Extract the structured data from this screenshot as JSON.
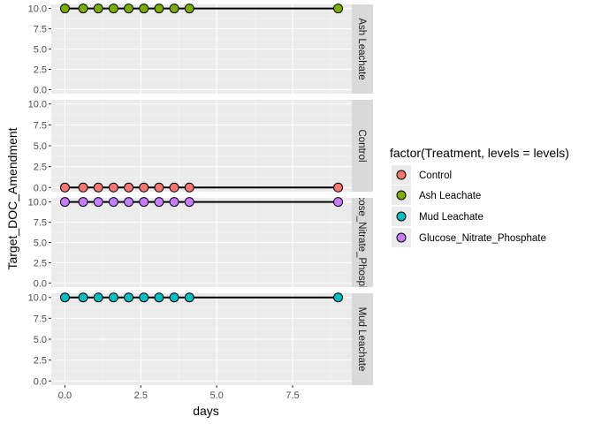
{
  "chart_data": {
    "type": "scatter",
    "xlabel": "days",
    "ylabel": "Target_DOC_Amendment",
    "xlim": [
      -0.45,
      9.45
    ],
    "ylim": [
      -0.5,
      10.5
    ],
    "x_ticks": [
      0.0,
      2.5,
      5.0,
      7.5
    ],
    "x_tick_labels": [
      "0.0",
      "2.5",
      "5.0",
      "7.5"
    ],
    "y_ticks": [
      0.0,
      2.5,
      5.0,
      7.5,
      10.0
    ],
    "y_tick_labels": [
      "0.0",
      "2.5",
      "5.0",
      "7.5",
      "10.0"
    ],
    "grid": true,
    "legend": {
      "title": "factor(Treatment, levels = levels)",
      "position": "right",
      "entries": [
        {
          "label": "Control",
          "color": "#F8766D"
        },
        {
          "label": "Ash Leachate",
          "color": "#7CAE00"
        },
        {
          "label": "Mud Leachate",
          "color": "#00BFC4"
        },
        {
          "label": "Glucose_Nitrate_Phosphate",
          "color": "#C77CFF"
        }
      ]
    },
    "x": [
      0.0,
      0.6,
      1.1,
      1.6,
      2.1,
      2.6,
      3.1,
      3.6,
      4.1,
      9.0
    ],
    "panels": [
      {
        "strip": "Ash Leachate",
        "color": "#7CAE00",
        "values": [
          10,
          10,
          10,
          10,
          10,
          10,
          10,
          10,
          10,
          10
        ]
      },
      {
        "strip": "Control",
        "color": "#F8766D",
        "values": [
          0,
          0,
          0,
          0,
          0,
          0,
          0,
          0,
          0,
          0
        ]
      },
      {
        "strip": "Glucose_Nitrate_Phosphate",
        "color": "#C77CFF",
        "values": [
          10,
          10,
          10,
          10,
          10,
          10,
          10,
          10,
          10,
          10
        ]
      },
      {
        "strip": "Mud Leachate",
        "color": "#00BFC4",
        "values": [
          10,
          10,
          10,
          10,
          10,
          10,
          10,
          10,
          10,
          10
        ]
      }
    ]
  }
}
